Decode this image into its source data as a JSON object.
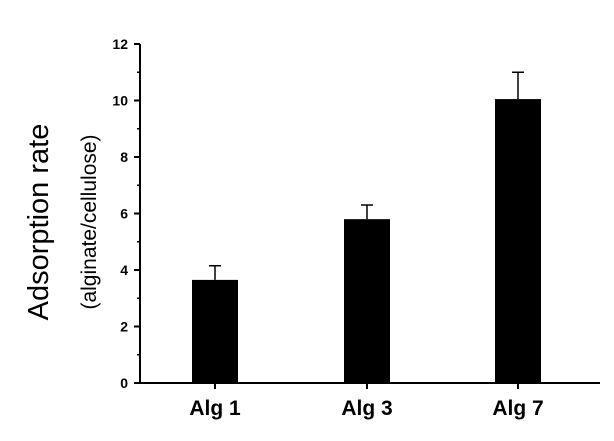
{
  "chart_data": {
    "type": "bar",
    "title": "",
    "xlabel": "",
    "ylabel": "Adsorption rate",
    "ylabel_sub": "(alginate/cellulose)",
    "categories": [
      "Alg 1",
      "Alg 3",
      "Alg 7"
    ],
    "series": [
      {
        "values": [
          3.65,
          5.8,
          10.05
        ],
        "error": [
          0.5,
          0.5,
          0.95
        ],
        "color": "#000000"
      }
    ],
    "ylim": [
      0,
      12
    ],
    "yticks": [
      0,
      2,
      4,
      6,
      8,
      10,
      12
    ],
    "grid": false,
    "legend": "none"
  }
}
